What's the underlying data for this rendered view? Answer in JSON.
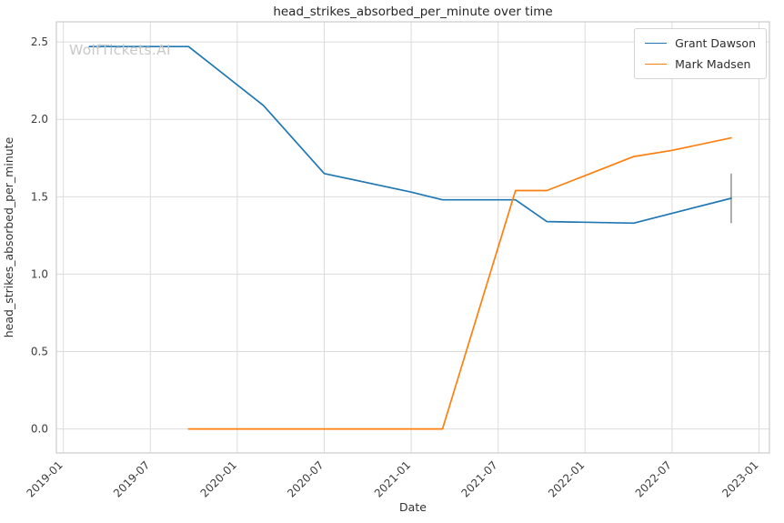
{
  "watermark": "WolfTickets.AI",
  "chart_data": {
    "type": "line",
    "title": "head_strikes_absorbed_per_minute over time",
    "xlabel": "Date",
    "ylabel": "head_strikes_absorbed_per_minute",
    "xlim": [
      2018.96,
      2023.06
    ],
    "ylim": [
      -0.155,
      2.63
    ],
    "grid": true,
    "legend_position": "top-right",
    "x_ticks": [
      {
        "value": 2019.0,
        "label": "2019-01"
      },
      {
        "value": 2019.5,
        "label": "2019-07"
      },
      {
        "value": 2020.0,
        "label": "2020-01"
      },
      {
        "value": 2020.5,
        "label": "2020-07"
      },
      {
        "value": 2021.0,
        "label": "2021-01"
      },
      {
        "value": 2021.5,
        "label": "2021-07"
      },
      {
        "value": 2022.0,
        "label": "2022-01"
      },
      {
        "value": 2022.5,
        "label": "2022-07"
      },
      {
        "value": 2023.0,
        "label": "2023-01"
      }
    ],
    "y_ticks": [
      {
        "value": 0.0,
        "label": "0.0"
      },
      {
        "value": 0.5,
        "label": "0.5"
      },
      {
        "value": 1.0,
        "label": "1.0"
      },
      {
        "value": 1.5,
        "label": "1.5"
      },
      {
        "value": 2.0,
        "label": "2.0"
      },
      {
        "value": 2.5,
        "label": "2.5"
      }
    ],
    "series": [
      {
        "name": "Grant Dawson",
        "color": "#1f77b4",
        "points": [
          [
            2019.15,
            2.47
          ],
          [
            2019.72,
            2.47
          ],
          [
            2020.15,
            2.09
          ],
          [
            2020.5,
            1.65
          ],
          [
            2021.0,
            1.53
          ],
          [
            2021.18,
            1.48
          ],
          [
            2021.6,
            1.48
          ],
          [
            2021.78,
            1.34
          ],
          [
            2022.28,
            1.33
          ],
          [
            2022.84,
            1.49
          ]
        ]
      },
      {
        "name": "Mark Madsen",
        "color": "#ff7f0e",
        "points": [
          [
            2019.72,
            0.0
          ],
          [
            2021.18,
            0.0
          ],
          [
            2021.6,
            1.54
          ],
          [
            2021.78,
            1.54
          ],
          [
            2022.28,
            1.76
          ],
          [
            2022.5,
            1.8
          ],
          [
            2022.84,
            1.88
          ]
        ]
      }
    ],
    "error_bar": {
      "x": 2022.84,
      "low": 1.33,
      "high": 1.65,
      "color": "#888888"
    }
  }
}
